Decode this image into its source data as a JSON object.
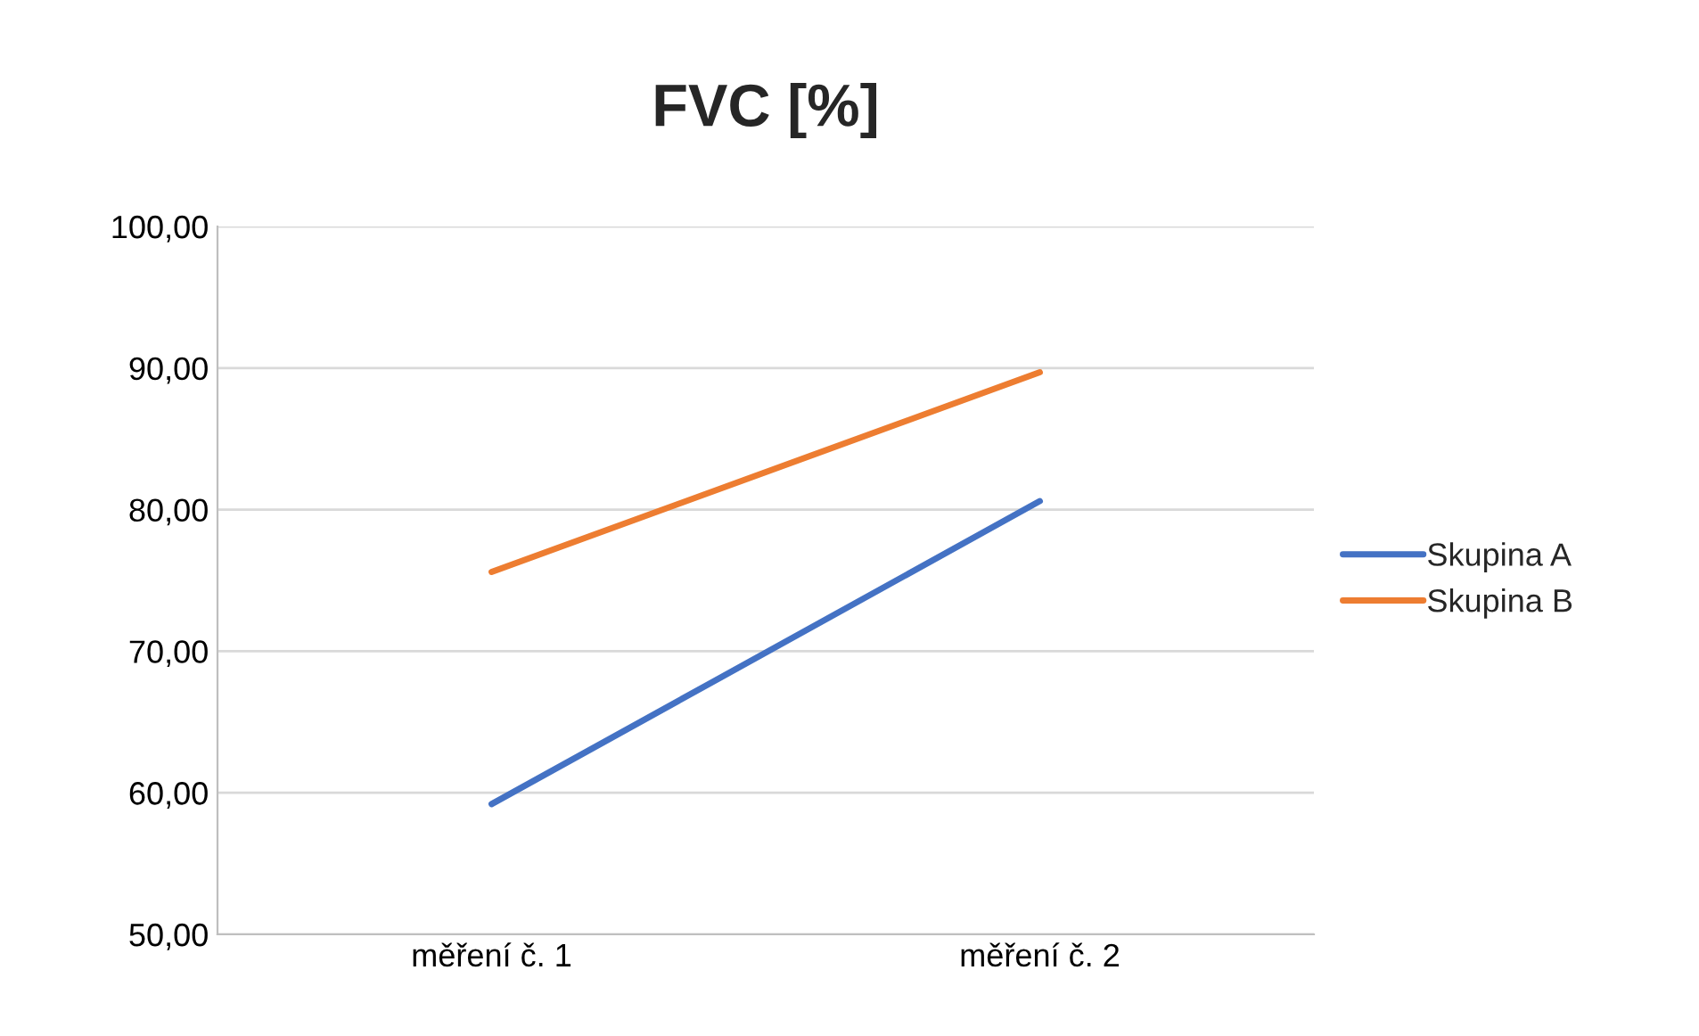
{
  "chart_data": {
    "type": "line",
    "title": "FVC [%]",
    "categories": [
      "měření č. 1",
      "měření č. 2"
    ],
    "series": [
      {
        "name": "Skupina A",
        "color": "#4472c4",
        "values": [
          59.2,
          80.6
        ]
      },
      {
        "name": "Skupina B",
        "color": "#ed7d31",
        "values": [
          75.6,
          89.7
        ]
      }
    ],
    "ylim": [
      50,
      100
    ],
    "yticks": [
      {
        "value": 50,
        "label": "50,00"
      },
      {
        "value": 60,
        "label": "60,00"
      },
      {
        "value": 70,
        "label": "70,00"
      },
      {
        "value": 80,
        "label": "80,00"
      },
      {
        "value": 90,
        "label": "90,00"
      },
      {
        "value": 100,
        "label": "100,00"
      }
    ],
    "grid": "y",
    "legend": "right",
    "marker": "none",
    "line_style": "solid"
  }
}
